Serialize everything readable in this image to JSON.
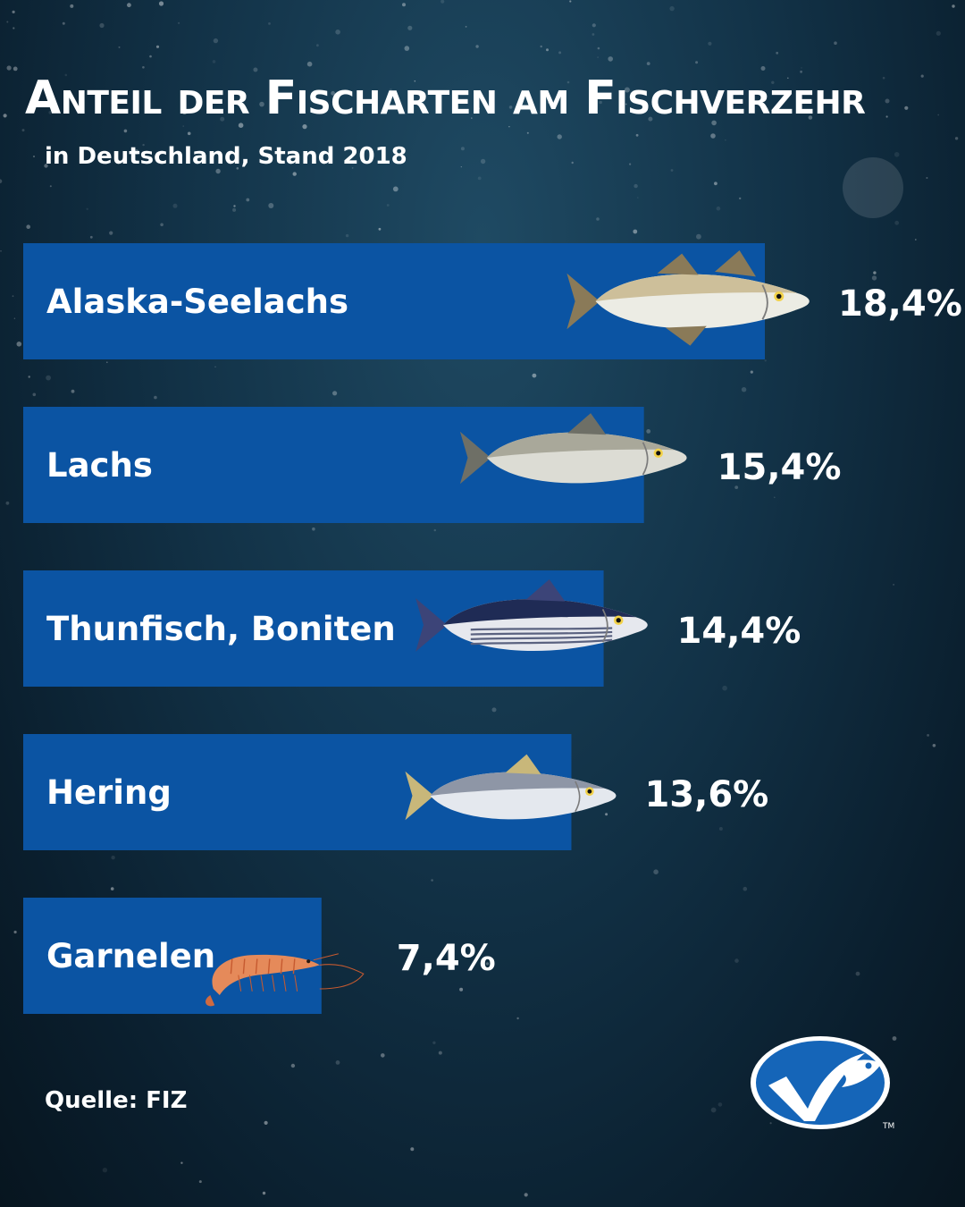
{
  "title": "Anteil der Fischarten am Fischverzehr",
  "subtitle": "in Deutschland, Stand 2018",
  "source": "Quelle: FIZ",
  "logo": {
    "name": "msc-fish-logo",
    "trademark": "TM"
  },
  "colors": {
    "bar": "#0b54a3",
    "text": "#ffffff",
    "background": "#123247",
    "logo": "#1565b8"
  },
  "chart_data": {
    "type": "bar",
    "orientation": "horizontal",
    "title": "Anteil der Fischarten am Fischverzehr",
    "subtitle": "in Deutschland, Stand 2018",
    "categories": [
      "Alaska-Seelachs",
      "Lachs",
      "Thunfisch, Boniten",
      "Hering",
      "Garnelen"
    ],
    "values": [
      18.4,
      15.4,
      14.4,
      13.6,
      7.4
    ],
    "value_labels": [
      "18,4%",
      "15,4%",
      "14,4%",
      "13,6%",
      "7,4%"
    ],
    "unit": "%",
    "icons": [
      "pollock-icon",
      "salmon-icon",
      "tuna-icon",
      "herring-icon",
      "shrimp-icon"
    ],
    "grid": false,
    "legend": "none"
  }
}
